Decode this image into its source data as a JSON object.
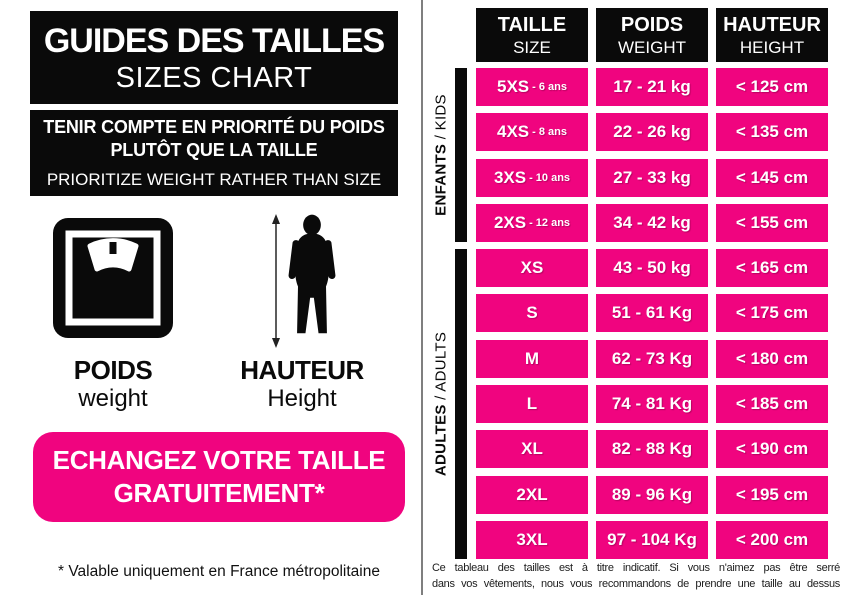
{
  "colors": {
    "pink": "#F0047F",
    "black": "#0A0A0A",
    "divider": "#7F7F7F"
  },
  "left_panel": {
    "title_box": {
      "line1": "GUIDES DES TAILLES",
      "line2": "SIZES CHART"
    },
    "priority_box": {
      "fr_line1": "TENIR COMPTE EN PRIORITÉ DU POIDS",
      "fr_line2": "PLUTÔT QUE LA TAILLE",
      "en_line": "PRIORITIZE WEIGHT RATHER THAN SIZE"
    },
    "weight_figure": {
      "icon": "weighing-scale-icon",
      "label_fr": "POIDS",
      "label_en": "weight"
    },
    "height_figure": {
      "icon": "person-height-icon",
      "label_fr": "HAUTEUR",
      "label_en": "Height"
    },
    "exchange_banner": {
      "line1": "ECHANGEZ VOTRE TAILLE",
      "line2": "GRATUITEMENT*"
    },
    "footnote": "* Valable uniquement en France métropolitaine"
  },
  "size_table": {
    "headers": [
      {
        "fr": "TAILLE",
        "en": "SIZE"
      },
      {
        "fr": "POIDS",
        "en": "WEIGHT"
      },
      {
        "fr": "HAUTEUR",
        "en": "HEIGHT"
      }
    ],
    "groups": {
      "kids": {
        "label_fr": "ENFANTS",
        "separator": " / ",
        "label_en": "KIDS"
      },
      "adults": {
        "label_fr": "ADULTES",
        "separator": " / ",
        "label_en": "ADULTS"
      }
    },
    "rows": [
      {
        "group": "kids",
        "size": "5XS",
        "age": "- 6 ans",
        "weight": "17 - 21 kg",
        "height": "< 125 cm"
      },
      {
        "group": "kids",
        "size": "4XS",
        "age": "- 8 ans",
        "weight": "22 - 26 kg",
        "height": "< 135 cm"
      },
      {
        "group": "kids",
        "size": "3XS",
        "age": "- 10 ans",
        "weight": "27 - 33 kg",
        "height": "< 145 cm"
      },
      {
        "group": "kids",
        "size": "2XS",
        "age": "- 12 ans",
        "weight": "34 - 42 kg",
        "height": "< 155 cm"
      },
      {
        "group": "adults",
        "size": "XS",
        "age": "",
        "weight": "43 - 50 kg",
        "height": "< 165 cm"
      },
      {
        "group": "adults",
        "size": "S",
        "age": "",
        "weight": "51 - 61 Kg",
        "height": "< 175 cm"
      },
      {
        "group": "adults",
        "size": "M",
        "age": "",
        "weight": "62 - 73 Kg",
        "height": "< 180 cm"
      },
      {
        "group": "adults",
        "size": "L",
        "age": "",
        "weight": "74 - 81 Kg",
        "height": "< 185 cm"
      },
      {
        "group": "adults",
        "size": "XL",
        "age": "",
        "weight": "82 - 88 Kg",
        "height": "< 190 cm"
      },
      {
        "group": "adults",
        "size": "2XL",
        "age": "",
        "weight": "89 - 96 Kg",
        "height": "< 195 cm"
      },
      {
        "group": "adults",
        "size": "3XL",
        "age": "",
        "weight": "97 - 104 Kg",
        "height": "< 200 cm"
      }
    ]
  },
  "disclaimer": {
    "line1": "Ce tableau des tailles est à titre indicatif. Si vous n'aimez pas être serré",
    "line2": "dans vos vêtements, nous vous recommandons de prendre une taille au dessus"
  }
}
